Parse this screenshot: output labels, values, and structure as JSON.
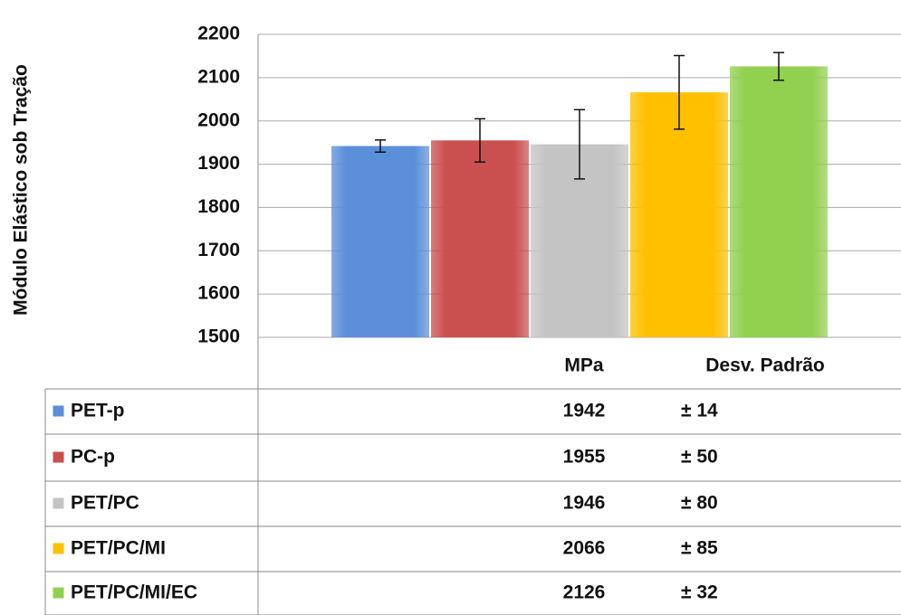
{
  "chart_data": {
    "type": "bar",
    "ylabel": "Módulo Elástico sob Tração",
    "categories": [
      "PET-p",
      "PC-p",
      "PET/PC",
      "PET/PC/MI",
      "PET/PC/MI/EC"
    ],
    "values": [
      1942,
      1955,
      1946,
      2066,
      2126
    ],
    "errors": [
      14,
      50,
      80,
      85,
      32
    ],
    "error_labels": [
      "± 14",
      "± 50",
      "± 80",
      "± 85",
      "± 32"
    ],
    "colors": [
      "#5b8fd9",
      "#c9504f",
      "#c4c4c4",
      "#ffc000",
      "#92d050"
    ],
    "table_headers": [
      "MPa",
      "Desv. Padrão"
    ],
    "ylim": [
      1500,
      2200
    ],
    "yticks": [
      1500,
      1600,
      1700,
      1800,
      1900,
      2000,
      2100,
      2200
    ],
    "grid": true
  }
}
